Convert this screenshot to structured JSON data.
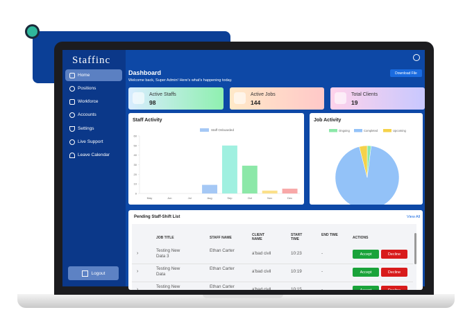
{
  "sidebar": {
    "logo": "Staffinc",
    "menu": [
      "Home",
      "Positions",
      "Workforce",
      "Accounts",
      "Settings",
      "Live Support",
      "Leave Calendar"
    ],
    "logout": "Logout"
  },
  "header": {
    "title": "Dashboard",
    "subtitle": "Welcome back, Super Admin! Here's what's happening today.",
    "download": "Download File"
  },
  "stats": [
    {
      "label": "Active Staffs",
      "value": "98"
    },
    {
      "label": "Active Jobs",
      "value": "144"
    },
    {
      "label": "Total Clients",
      "value": "19"
    }
  ],
  "chart_data": [
    {
      "type": "bar",
      "title": "Staff Activity",
      "categories": [
        "May",
        "Jun",
        "Jul",
        "Aug",
        "Sep",
        "Oct",
        "Nov",
        "Dec"
      ],
      "series": [
        {
          "name": "Staff Onboarded",
          "color": "#a5c8f5",
          "values": [
            0,
            0,
            0,
            9,
            50,
            29,
            3,
            5
          ],
          "bar_colors": [
            "#f8a8a8",
            "#fbd08a",
            "#fbe08a",
            "#a5c8f5",
            "#a0f0e0",
            "#8ce8a8",
            "#fbe08a",
            "#f8a8a8"
          ]
        }
      ],
      "ylim": [
        0,
        60
      ],
      "yticks": [
        0,
        10,
        20,
        30,
        40,
        50,
        60
      ]
    },
    {
      "type": "pie",
      "title": "Job Activity",
      "categories": [
        "Ongoing",
        "Completed",
        "Upcoming"
      ],
      "values": [
        2,
        94,
        4
      ],
      "colors": [
        "#8ce8a8",
        "#93c2f8",
        "#f5d24a"
      ]
    }
  ],
  "table": {
    "title": "Pending Staff-Shift List",
    "view_all": "View All",
    "columns": [
      "JOB TITLE",
      "STAFF NAME",
      "CLIENT NAME",
      "START TIME",
      "END TIME",
      "ACTIONS"
    ],
    "rows": [
      [
        "Testing New Data 3",
        "Ethan Carter",
        "a'bad civil",
        "10:23",
        "-"
      ],
      [
        "Testing New Data",
        "Ethan Carter",
        "a'bad civil",
        "10:19",
        "-"
      ],
      [
        "Testing New Data",
        "Ethan Carter",
        "a'bad civil",
        "10:15",
        "-"
      ]
    ],
    "accept": "Accept",
    "decline": "Decline"
  }
}
